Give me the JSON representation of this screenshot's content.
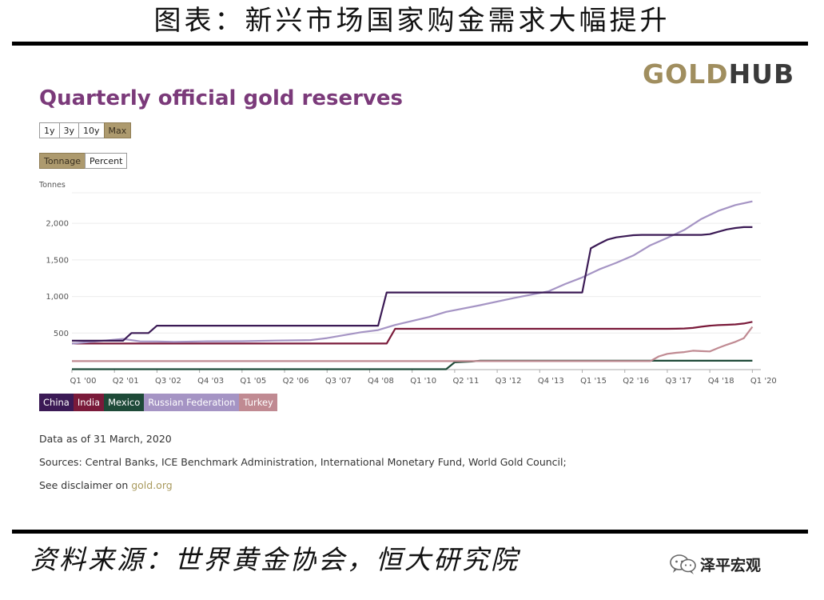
{
  "figure_title": "图表：新兴市场国家购金需求大幅提升",
  "logo": {
    "part1": "GOLD",
    "part2": "HUB",
    "color1": "#a08e5f",
    "color2": "#3a3a3a"
  },
  "range_buttons": [
    {
      "label": "1y",
      "active": false
    },
    {
      "label": "3y",
      "active": false
    },
    {
      "label": "10y",
      "active": false
    },
    {
      "label": "Max",
      "active": true
    }
  ],
  "mode_buttons": [
    {
      "label": "Tonnage",
      "active": true
    },
    {
      "label": "Percent",
      "active": false
    }
  ],
  "notes": {
    "data_as_of": "Data as of 31 March, 2020",
    "sources": "Sources: Central Banks, ICE Benchmark Administration, International Monetary Fund, World Gold Council;",
    "disclaimer_prefix": "See disclaimer on ",
    "disclaimer_link": "gold.org"
  },
  "source_line": "资料来源：世界黄金协会，恒大研究院",
  "badge": {
    "label": "泽平宏观",
    "icon": "wechat-icon"
  },
  "chart_data": {
    "type": "line",
    "title": "Quarterly official gold reserves",
    "ylabel": "Tonnes",
    "xlabel": "",
    "ylim": [
      0,
      2450
    ],
    "xlim": [
      2000.0,
      2020.25
    ],
    "grid": true,
    "legend_placement": "bottom-left",
    "y_ticks": [
      500,
      1000,
      1500,
      2000
    ],
    "y_tick_labels": [
      "500",
      "1,000",
      "1,500",
      "2,000"
    ],
    "x_ticks": [
      2000.0,
      2001.25,
      2002.5,
      2003.75,
      2005.0,
      2006.25,
      2007.5,
      2008.75,
      2010.0,
      2011.25,
      2012.5,
      2013.75,
      2015.0,
      2016.25,
      2017.5,
      2018.75,
      2020.0
    ],
    "x_tick_labels": [
      "Q1 '00",
      "Q2 '01",
      "Q3 '02",
      "Q4 '03",
      "Q1 '05",
      "Q2 '06",
      "Q3 '07",
      "Q4 '08",
      "Q1 '10",
      "Q2 '11",
      "Q3 '12",
      "Q4 '13",
      "Q1 '15",
      "Q2 '16",
      "Q3 '17",
      "Q4 '18",
      "Q1 '20"
    ],
    "series": [
      {
        "name": "China",
        "color": "#3b1a55",
        "x": [
          2000,
          2001.5,
          2001.75,
          2002.25,
          2002.5,
          2009.0,
          2009.25,
          2015.0,
          2015.25,
          2015.5,
          2015.75,
          2016.0,
          2016.25,
          2016.5,
          2016.75,
          2018.5,
          2018.75,
          2019.0,
          2019.25,
          2019.5,
          2019.75,
          2020.0
        ],
        "y": [
          395,
          395,
          500,
          500,
          600,
          600,
          1054,
          1054,
          1658,
          1722,
          1778,
          1808,
          1823,
          1838,
          1842,
          1842,
          1852,
          1885,
          1916,
          1936,
          1948,
          1948
        ]
      },
      {
        "name": "India",
        "color": "#7a1a3a",
        "x": [
          2000,
          2009.25,
          2009.5,
          2017.5,
          2017.75,
          2018.0,
          2018.25,
          2018.5,
          2018.75,
          2019.0,
          2019.25,
          2019.5,
          2019.75,
          2020.0
        ],
        "y": [
          357,
          357,
          558,
          558,
          559,
          562,
          570,
          586,
          600,
          608,
          613,
          618,
          630,
          653
        ]
      },
      {
        "name": "Mexico",
        "color": "#1e4a38",
        "x": [
          2000,
          2011.0,
          2011.25,
          2011.75,
          2012.0,
          2020.0
        ],
        "y": [
          6,
          6,
          100,
          110,
          121,
          121
        ]
      },
      {
        "name": "Russian Federation",
        "color": "#a594c4",
        "x": [
          2000,
          2001.0,
          2001.5,
          2002.0,
          2002.5,
          2003.0,
          2004.0,
          2005.0,
          2006.0,
          2007.0,
          2007.5,
          2008.0,
          2008.5,
          2009.0,
          2009.5,
          2010.0,
          2010.5,
          2011.0,
          2012.0,
          2013.0,
          2014.0,
          2014.5,
          2015.0,
          2015.5,
          2016.0,
          2016.5,
          2017.0,
          2017.5,
          2018.0,
          2018.5,
          2019.0,
          2019.5,
          2020.0
        ],
        "y": [
          355,
          398,
          420,
          386,
          385,
          380,
          387,
          388,
          397,
          402,
          431,
          471,
          511,
          540,
          610,
          665,
          720,
          790,
          880,
          980,
          1070,
          1170,
          1260,
          1370,
          1460,
          1560,
          1700,
          1800,
          1910,
          2060,
          2170,
          2250,
          2300
        ]
      },
      {
        "name": "Turkey",
        "color": "#c08a92",
        "x": [
          2000,
          2017.0,
          2017.25,
          2017.5,
          2017.75,
          2018.0,
          2018.25,
          2018.5,
          2018.75,
          2019.0,
          2019.25,
          2019.5,
          2019.75,
          2020.0
        ],
        "y": [
          116,
          116,
          180,
          215,
          230,
          240,
          258,
          253,
          248,
          296,
          340,
          379,
          430,
          585
        ]
      }
    ]
  }
}
